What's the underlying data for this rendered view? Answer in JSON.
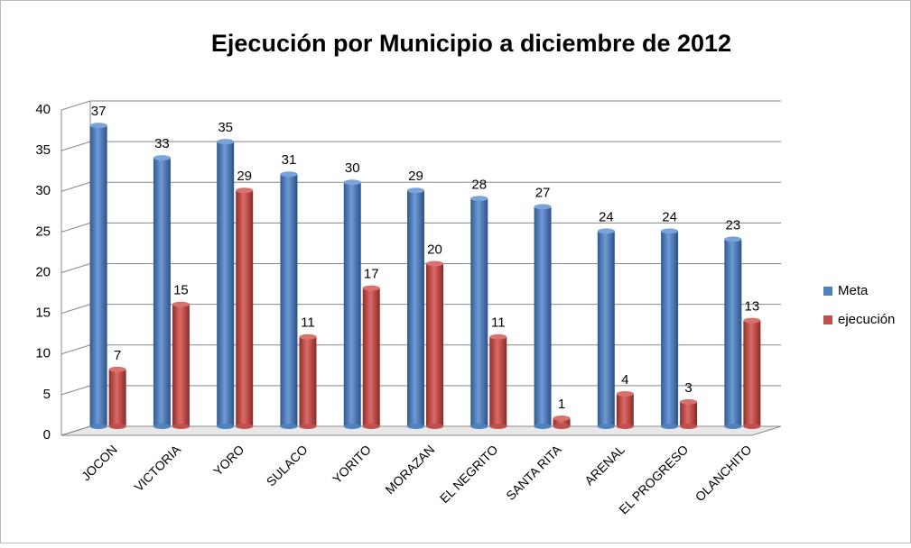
{
  "chart_data": {
    "type": "bar",
    "title": "Ejecución por Municipio a diciembre de 2012",
    "categories": [
      "JOCON",
      "VICTORIA",
      "YORO",
      "SULACO",
      "YORITO",
      "MORAZAN",
      "EL NEGRITO",
      "SANTA RITA",
      "ARENAL",
      "EL PROGRESO",
      "OLANCHITO"
    ],
    "series": [
      {
        "name": "Meta",
        "color": "#4f81bd",
        "values": [
          37,
          33,
          35,
          31,
          30,
          29,
          28,
          27,
          24,
          24,
          23
        ]
      },
      {
        "name": "ejecución",
        "color": "#c0504d",
        "values": [
          7,
          15,
          29,
          11,
          17,
          20,
          11,
          1,
          4,
          3,
          13
        ]
      }
    ],
    "ylim": [
      0,
      40
    ],
    "yticks": [
      0,
      5,
      10,
      15,
      20,
      25,
      30,
      35,
      40
    ],
    "grid": true,
    "legend": "right"
  }
}
